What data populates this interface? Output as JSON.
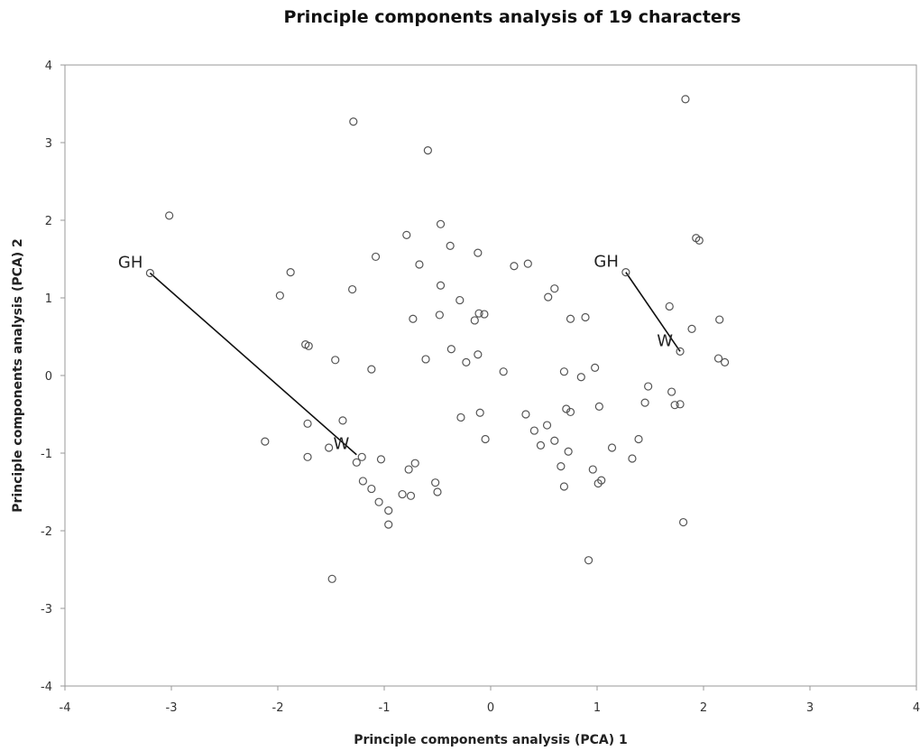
{
  "chart_data": {
    "type": "scatter",
    "title": "Principle components analysis of 19 characters",
    "xlabel": "Principle components analysis (PCA) 1",
    "ylabel": "Principle components analysis (PCA) 2",
    "xlim": [
      -4,
      4
    ],
    "ylim": [
      -4,
      4
    ],
    "x_ticks": [
      -4,
      -3,
      -2,
      -1,
      0,
      1,
      2,
      3,
      4
    ],
    "y_ticks": [
      -4,
      -3,
      -2,
      -1,
      0,
      1,
      2,
      3,
      4
    ],
    "grid": false,
    "legend": "none",
    "marker": "open-circle",
    "points": [
      [
        1.83,
        3.56
      ],
      [
        -1.29,
        3.27
      ],
      [
        -0.59,
        2.9
      ],
      [
        -3.02,
        2.06
      ],
      [
        -0.47,
        1.95
      ],
      [
        1.93,
        1.77
      ],
      [
        1.96,
        1.74
      ],
      [
        -0.79,
        1.81
      ],
      [
        -0.38,
        1.67
      ],
      [
        -0.12,
        1.58
      ],
      [
        -1.08,
        1.53
      ],
      [
        -0.67,
        1.43
      ],
      [
        0.22,
        1.41
      ],
      [
        0.35,
        1.44
      ],
      [
        -1.88,
        1.33
      ],
      [
        -3.2,
        1.32
      ],
      [
        1.27,
        1.33
      ],
      [
        -1.3,
        1.11
      ],
      [
        -0.47,
        1.16
      ],
      [
        0.6,
        1.12
      ],
      [
        -1.98,
        1.03
      ],
      [
        0.54,
        1.01
      ],
      [
        -0.29,
        0.97
      ],
      [
        1.68,
        0.89
      ],
      [
        -0.11,
        0.8
      ],
      [
        -0.06,
        0.79
      ],
      [
        -0.48,
        0.78
      ],
      [
        -0.73,
        0.73
      ],
      [
        0.75,
        0.73
      ],
      [
        0.89,
        0.75
      ],
      [
        -0.15,
        0.71
      ],
      [
        2.15,
        0.72
      ],
      [
        1.89,
        0.6
      ],
      [
        -1.74,
        0.4
      ],
      [
        -1.71,
        0.38
      ],
      [
        -0.37,
        0.34
      ],
      [
        1.78,
        0.31
      ],
      [
        -0.12,
        0.27
      ],
      [
        2.14,
        0.22
      ],
      [
        -1.46,
        0.2
      ],
      [
        -0.61,
        0.21
      ],
      [
        -0.23,
        0.17
      ],
      [
        2.2,
        0.17
      ],
      [
        -1.12,
        0.08
      ],
      [
        0.12,
        0.05
      ],
      [
        0.69,
        0.05
      ],
      [
        0.98,
        0.1
      ],
      [
        0.85,
        -0.02
      ],
      [
        1.48,
        -0.14
      ],
      [
        1.7,
        -0.21
      ],
      [
        1.45,
        -0.35
      ],
      [
        1.73,
        -0.38
      ],
      [
        1.78,
        -0.37
      ],
      [
        1.02,
        -0.4
      ],
      [
        0.71,
        -0.43
      ],
      [
        0.75,
        -0.47
      ],
      [
        -0.1,
        -0.48
      ],
      [
        -0.28,
        -0.54
      ],
      [
        0.33,
        -0.5
      ],
      [
        -1.39,
        -0.58
      ],
      [
        -1.72,
        -0.62
      ],
      [
        0.53,
        -0.64
      ],
      [
        0.41,
        -0.71
      ],
      [
        -0.05,
        -0.82
      ],
      [
        0.6,
        -0.84
      ],
      [
        -2.12,
        -0.85
      ],
      [
        0.47,
        -0.9
      ],
      [
        1.39,
        -0.82
      ],
      [
        1.14,
        -0.93
      ],
      [
        -1.52,
        -0.93
      ],
      [
        0.73,
        -0.98
      ],
      [
        -1.72,
        -1.05
      ],
      [
        -1.03,
        -1.08
      ],
      [
        -1.21,
        -1.05
      ],
      [
        1.33,
        -1.07
      ],
      [
        -1.26,
        -1.12
      ],
      [
        -0.71,
        -1.13
      ],
      [
        0.66,
        -1.17
      ],
      [
        -0.77,
        -1.21
      ],
      [
        0.96,
        -1.21
      ],
      [
        -1.2,
        -1.36
      ],
      [
        -0.52,
        -1.38
      ],
      [
        1.01,
        -1.39
      ],
      [
        1.04,
        -1.35
      ],
      [
        0.69,
        -1.43
      ],
      [
        -1.12,
        -1.46
      ],
      [
        -0.5,
        -1.5
      ],
      [
        -0.83,
        -1.53
      ],
      [
        -0.75,
        -1.55
      ],
      [
        -1.05,
        -1.63
      ],
      [
        -0.96,
        -1.74
      ],
      [
        -0.96,
        -1.92
      ],
      [
        1.81,
        -1.89
      ],
      [
        0.92,
        -2.38
      ],
      [
        -1.49,
        -2.62
      ]
    ],
    "lines": [
      {
        "from": [
          -3.2,
          1.32
        ],
        "to": [
          -1.26,
          -1.02
        ]
      },
      {
        "from": [
          1.27,
          1.33
        ],
        "to": [
          1.78,
          0.31
        ]
      }
    ],
    "annotations": [
      {
        "text": "GH",
        "x": -3.2,
        "y": 1.32
      },
      {
        "text": "W",
        "x": -1.26,
        "y": -1.02
      },
      {
        "text": "GH",
        "x": 1.27,
        "y": 1.33
      },
      {
        "text": "W",
        "x": 1.78,
        "y": 0.31
      }
    ]
  }
}
